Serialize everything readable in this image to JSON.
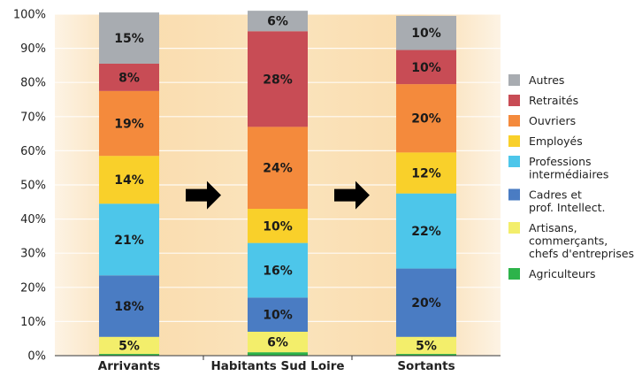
{
  "chart_data": {
    "type": "bar",
    "stacked": true,
    "percent": true,
    "ylim": [
      0,
      100
    ],
    "yticks": [
      "0%",
      "10%",
      "20%",
      "30%",
      "40%",
      "50%",
      "60%",
      "70%",
      "80%",
      "90%",
      "100%"
    ],
    "categories": [
      "Arrivants",
      "Habitants Sud Loire",
      "Sortants"
    ],
    "series": [
      {
        "name": "Agriculteurs",
        "color": "#2db34a",
        "values": [
          0.5,
          1,
          0.5
        ],
        "labels": [
          "",
          "",
          ""
        ]
      },
      {
        "name": "Artisans, commerçants, chefs d'entreprises",
        "color": "#f3ee6b",
        "values": [
          5,
          6,
          5
        ],
        "labels": [
          "5%",
          "6%",
          "5%"
        ]
      },
      {
        "name": "Cadres et prof. Intellect.",
        "color": "#4a7cc3",
        "values": [
          18,
          10,
          20
        ],
        "labels": [
          "18%",
          "10%",
          "20%"
        ]
      },
      {
        "name": "Professions intermédiaires",
        "color": "#4dc6ea",
        "values": [
          21,
          16,
          22
        ],
        "labels": [
          "21%",
          "16%",
          "22%"
        ]
      },
      {
        "name": "Employés",
        "color": "#f9d02a",
        "values": [
          14,
          10,
          12
        ],
        "labels": [
          "14%",
          "10%",
          "12%"
        ]
      },
      {
        "name": "Ouvriers",
        "color": "#f48a3c",
        "values": [
          19,
          24,
          20
        ],
        "labels": [
          "19%",
          "24%",
          "20%"
        ]
      },
      {
        "name": "Retraités",
        "color": "#c84c55",
        "values": [
          8,
          28,
          10
        ],
        "labels": [
          "8%",
          "28%",
          "10%"
        ]
      },
      {
        "name": "Autres",
        "color": "#a8acb1",
        "values": [
          15,
          6,
          10
        ],
        "labels": [
          "15%",
          "6%",
          "10%"
        ]
      }
    ],
    "legend": {
      "placement": "right",
      "items": [
        {
          "lines": [
            "Autres"
          ],
          "color": "#a8acb1"
        },
        {
          "lines": [
            "Retraités"
          ],
          "color": "#c84c55"
        },
        {
          "lines": [
            "Ouvriers"
          ],
          "color": "#f48a3c"
        },
        {
          "lines": [
            "Employés"
          ],
          "color": "#f9d02a"
        },
        {
          "lines": [
            "Professions",
            "intermédiaires"
          ],
          "color": "#4dc6ea"
        },
        {
          "lines": [
            "Cadres et",
            "prof. Intellect."
          ],
          "color": "#4a7cc3"
        },
        {
          "lines": [
            "Artisans,",
            "commerçants,",
            "chefs d'entreprises"
          ],
          "color": "#f3ee6b"
        },
        {
          "lines": [
            "Agriculteurs"
          ],
          "color": "#2db34a"
        }
      ]
    },
    "arrows": 2,
    "grid": true
  }
}
